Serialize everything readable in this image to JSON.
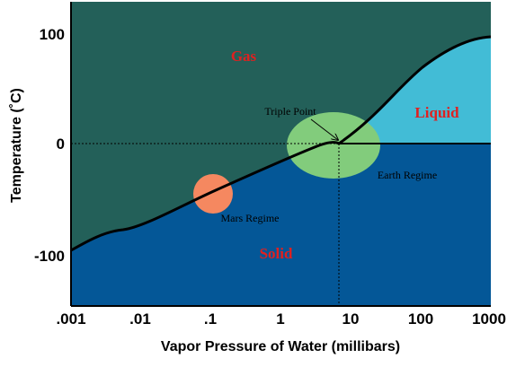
{
  "colors": {
    "gas": "#236059",
    "solid": "#045797",
    "liquid": "#42BCD6",
    "earth": "#82CC7C",
    "mars": "#F58860",
    "phase_label": "#E02020"
  },
  "axes": {
    "xlabel": "Vapor Pressure of Water (millibars)",
    "ylabel": "Temperature (˚C)",
    "x_scale": "log",
    "x_ticks": [
      ".001",
      ".01",
      ".1",
      "1",
      "10",
      "100",
      "1000"
    ],
    "y_ticks": [
      "100",
      "0",
      "-100"
    ]
  },
  "regions": {
    "gas": "Gas",
    "liquid": "Liquid",
    "solid": "Solid"
  },
  "annotations": {
    "triple_point": "Triple Point",
    "earth_regime": "Earth Regime",
    "mars_regime": "Mars Regime"
  }
}
